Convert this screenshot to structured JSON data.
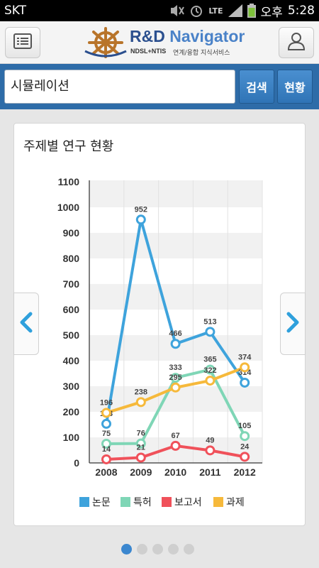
{
  "status_bar": {
    "carrier": "SKT",
    "network": "LTE",
    "ampm": "오후",
    "time": "5:28"
  },
  "header": {
    "menu_icon": "list-icon",
    "user_icon": "user-icon",
    "logo": {
      "title_part1": "R&D",
      "title_part2": "Navigator",
      "subtitle_left": "NDSL+NTIS",
      "subtitle_right": "연계/융합 지식서비스"
    }
  },
  "search": {
    "value": "시뮬레이션",
    "search_button": "검색",
    "status_button": "현황"
  },
  "card": {
    "title": "주제별 연구 현황"
  },
  "chart_data": {
    "type": "line",
    "x": [
      "2008",
      "2009",
      "2010",
      "2011",
      "2012"
    ],
    "ylim": [
      0,
      1100
    ],
    "yticks": [
      0,
      100,
      200,
      300,
      400,
      500,
      600,
      700,
      800,
      900,
      1000,
      1100
    ],
    "grid": true,
    "legend_position": "bottom",
    "series": [
      {
        "name": "논문",
        "color": "#3ea3dc",
        "values": [
          153,
          952,
          466,
          513,
          314
        ]
      },
      {
        "name": "특허",
        "color": "#7fd6b6",
        "values": [
          75,
          76,
          333,
          365,
          105
        ]
      },
      {
        "name": "보고서",
        "color": "#f0515a",
        "values": [
          14,
          21,
          67,
          49,
          24
        ]
      },
      {
        "name": "과제",
        "color": "#f6b93b",
        "values": [
          196,
          238,
          295,
          322,
          374
        ]
      }
    ]
  },
  "pager": {
    "total": 5,
    "active": 0
  }
}
